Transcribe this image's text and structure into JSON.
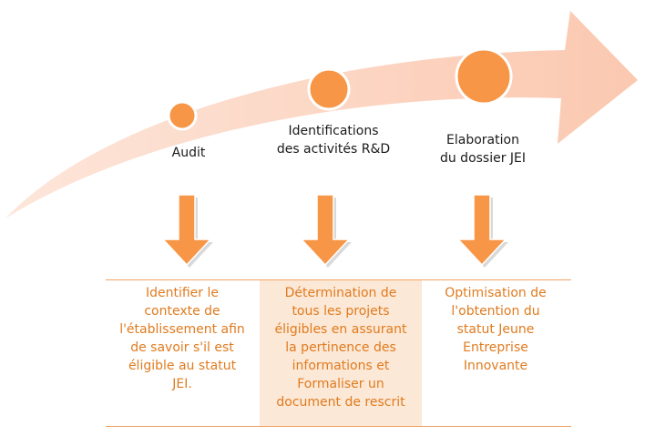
{
  "colors": {
    "arrow_fill": "#fbd3c0",
    "arrow_fill_light": "#fde6da",
    "circle": "#f79646",
    "circle_edge": "#ffffff",
    "down_arrow": "#f79646",
    "down_arrow_shadow": "#d9d9d9",
    "desc_text": "#e07b1f",
    "label_text": "#1a1a1a",
    "highlight": "#fce8d6",
    "rule": "#f0a366"
  },
  "stages": [
    {
      "label": "Audit",
      "description": "Identifier le\ncontexte  de\nl'établissement afin\nde savoir s'il est\néligible au statut\nJEI."
    },
    {
      "label": "Identifications\ndes activités R&D",
      "description": "Détermination de\ntous les projets\néligibles en assurant\nla pertinence des\ninformations et\nFormaliser un\ndocument de rescrit"
    },
    {
      "label": "Elaboration\ndu dossier JEI",
      "description": "Optimisation de\nl'obtention du\nstatut Jeune\nEntreprise\nInnovante"
    }
  ]
}
